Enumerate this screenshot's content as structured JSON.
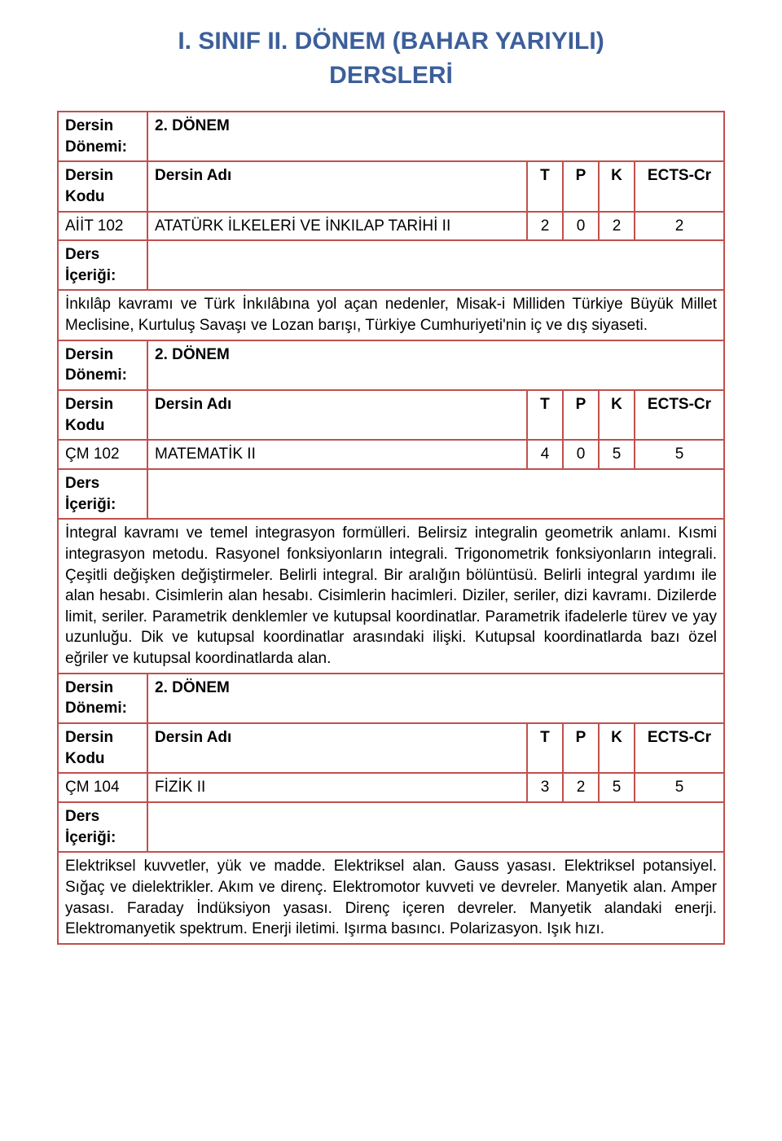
{
  "page": {
    "title_line1": "I. SINIF II. DÖNEM (BAHAR YARIYILI)",
    "title_line2": "DERSLERİ"
  },
  "labels": {
    "dersin_donemi": "Dersin Dönemi:",
    "dersin_kodu": "Dersin Kodu",
    "dersin_adi": "Dersin Adı",
    "t": "T",
    "p": "P",
    "k": "K",
    "ects": "ECTS-Cr",
    "ders_icerigi": "Ders İçeriği:"
  },
  "courses": [
    {
      "donem": "2. DÖNEM",
      "kodu": "AİİT 102",
      "adi": "ATATÜRK İLKELERİ VE İNKILAP TARİHİ II",
      "t": "2",
      "p": "0",
      "k": "2",
      "ects": "2",
      "icerik": "İnkılâp kavramı ve Türk İnkılâbına yol açan nedenler, Misak-i Milliden Türkiye Büyük Millet Meclisine, Kurtuluş Savaşı ve Lozan barışı, Türkiye Cumhuriyeti'nin iç ve dış siyaseti."
    },
    {
      "donem": "2. DÖNEM",
      "kodu": "ÇM 102",
      "adi": "MATEMATİK II",
      "t": "4",
      "p": "0",
      "k": "5",
      "ects": "5",
      "icerik": "İntegral kavramı ve temel integrasyon formülleri. Belirsiz integralin geometrik anlamı. Kısmi integrasyon metodu. Rasyonel fonksiyonların integrali. Trigonometrik fonksiyonların integrali. Çeşitli değişken değiştirmeler. Belirli integral. Bir aralığın bölüntüsü. Belirli integral yardımı ile alan hesabı. Cisimlerin alan hesabı. Cisimlerin hacimleri. Diziler, seriler, dizi kavramı. Dizilerde limit, seriler. Parametrik denklemler ve kutupsal koordinatlar. Parametrik ifadelerle türev ve yay uzunluğu. Dik ve kutupsal koordinatlar arasındaki ilişki. Kutupsal koordinatlarda bazı özel eğriler ve kutupsal koordinatlarda alan."
    },
    {
      "donem": "2. DÖNEM",
      "kodu": "ÇM 104",
      "adi": "FİZİK II",
      "t": "3",
      "p": "2",
      "k": "5",
      "ects": "5",
      "icerik": "Elektriksel kuvvetler, yük ve madde. Elektriksel alan. Gauss yasası. Elektriksel potansiyel. Sığaç ve dielektrikler. Akım ve direnç. Elektromotor kuvveti ve devreler. Manyetik alan. Amper yasası. Faraday İndüksiyon yasası. Direnç içeren devreler. Manyetik alandaki enerji. Elektromanyetik spektrum. Enerji iletimi. Işırma basıncı. Polarizasyon. Işık hızı."
    }
  ]
}
